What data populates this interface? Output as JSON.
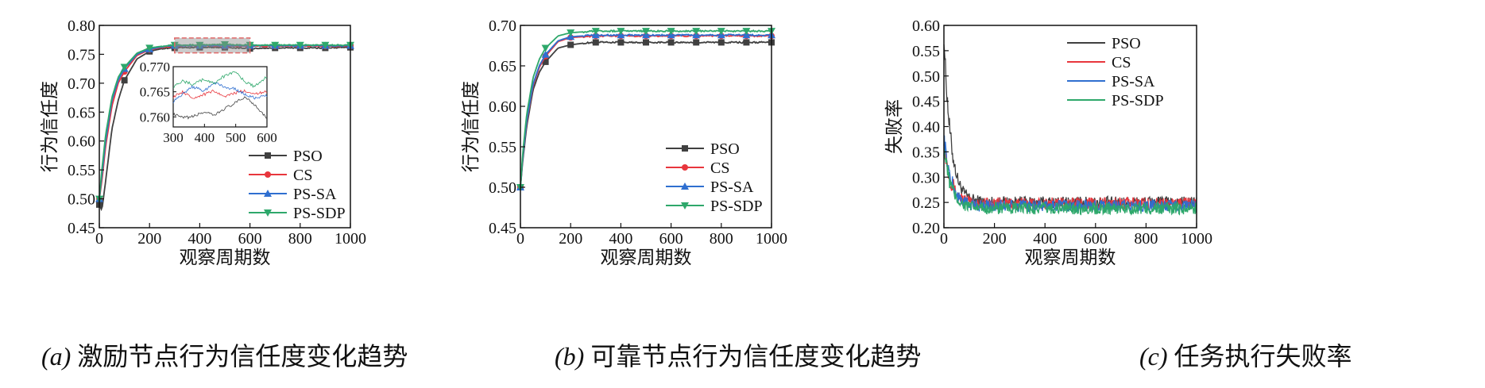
{
  "captions": [
    {
      "tag": "(a)",
      "text": " 激励节点行为信任度变化趋势"
    },
    {
      "tag": "(b)",
      "text": " 可靠节点行为信任度变化趋势"
    },
    {
      "tag": "(c)",
      "text": " 任务执行失败率"
    }
  ],
  "colors": {
    "PSO": "#404040",
    "CS": "#e8363d",
    "PS-SA": "#2f6fd0",
    "PS-SDP": "#2ea86b",
    "inset_box": "#e06a6a"
  },
  "chart_data": [
    {
      "type": "line",
      "title": "",
      "xlabel": "观察周期数",
      "ylabel": "行为信任度",
      "xlim": [
        0,
        1000
      ],
      "ylim": [
        0.45,
        0.8
      ],
      "xticks": [
        0,
        200,
        400,
        600,
        800,
        1000
      ],
      "yticks": [
        0.45,
        0.5,
        0.55,
        0.6,
        0.65,
        0.7,
        0.75,
        0.8
      ],
      "ytick_labels": [
        "0.45",
        "0.50",
        "0.55",
        "0.60",
        "0.65",
        "0.70",
        "0.75",
        "0.80"
      ],
      "legend": "bottom-right",
      "markers_every": 100,
      "series": [
        {
          "name": "PSO",
          "marker": "square",
          "x": [
            0,
            10,
            25,
            50,
            75,
            100,
            150,
            200,
            250,
            300,
            400,
            500,
            600,
            700,
            800,
            900,
            1000
          ],
          "values": [
            0.49,
            0.48,
            0.53,
            0.62,
            0.67,
            0.705,
            0.742,
            0.755,
            0.76,
            0.761,
            0.762,
            0.762,
            0.76,
            0.761,
            0.761,
            0.761,
            0.762
          ]
        },
        {
          "name": "CS",
          "marker": "circle",
          "x": [
            0,
            10,
            25,
            50,
            75,
            100,
            150,
            200,
            250,
            300,
            400,
            500,
            600,
            700,
            800,
            900,
            1000
          ],
          "values": [
            0.5,
            0.53,
            0.59,
            0.66,
            0.7,
            0.72,
            0.748,
            0.758,
            0.762,
            0.764,
            0.765,
            0.764,
            0.764,
            0.764,
            0.764,
            0.764,
            0.764
          ]
        },
        {
          "name": "PS-SA",
          "marker": "triangle-up",
          "x": [
            0,
            10,
            25,
            50,
            75,
            100,
            150,
            200,
            250,
            300,
            400,
            500,
            600,
            700,
            800,
            900,
            1000
          ],
          "values": [
            0.5,
            0.54,
            0.6,
            0.67,
            0.705,
            0.725,
            0.75,
            0.759,
            0.763,
            0.765,
            0.765,
            0.765,
            0.765,
            0.765,
            0.765,
            0.765,
            0.765
          ]
        },
        {
          "name": "PS-SDP",
          "marker": "triangle-down",
          "x": [
            0,
            10,
            25,
            50,
            75,
            100,
            150,
            200,
            250,
            300,
            400,
            500,
            600,
            700,
            800,
            900,
            1000
          ],
          "values": [
            0.5,
            0.55,
            0.61,
            0.675,
            0.71,
            0.728,
            0.752,
            0.761,
            0.764,
            0.766,
            0.766,
            0.767,
            0.766,
            0.766,
            0.766,
            0.766,
            0.766
          ]
        }
      ],
      "inset": {
        "xlim": [
          300,
          600
        ],
        "ylim": [
          0.758,
          0.77
        ],
        "xticks": [
          300,
          400,
          500,
          600
        ],
        "yticks": [
          0.76,
          0.765,
          0.77
        ],
        "ytick_labels": [
          "0.760",
          "0.765",
          "0.770"
        ],
        "series": [
          {
            "name": "PSO",
            "x": [
              300,
              330,
              360,
              400,
              430,
              460,
              500,
              530,
              560,
              600
            ],
            "values": [
              0.7605,
              0.7598,
              0.76,
              0.761,
              0.7602,
              0.7615,
              0.7628,
              0.764,
              0.7625,
              0.7598
            ]
          },
          {
            "name": "CS",
            "x": [
              300,
              330,
              360,
              400,
              430,
              460,
              500,
              530,
              560,
              600
            ],
            "values": [
              0.764,
              0.765,
              0.7638,
              0.7645,
              0.7652,
              0.764,
              0.7648,
              0.7652,
              0.7645,
              0.765
            ]
          },
          {
            "name": "PS-SA",
            "x": [
              300,
              330,
              360,
              400,
              430,
              460,
              500,
              530,
              560,
              600
            ],
            "values": [
              0.763,
              0.7645,
              0.766,
              0.7652,
              0.7668,
              0.766,
              0.7655,
              0.7645,
              0.7638,
              0.7642
            ]
          },
          {
            "name": "PS-SDP",
            "x": [
              300,
              330,
              360,
              400,
              430,
              460,
              500,
              530,
              560,
              600
            ],
            "values": [
              0.766,
              0.7672,
              0.7665,
              0.7675,
              0.7668,
              0.768,
              0.769,
              0.767,
              0.766,
              0.768
            ]
          }
        ]
      }
    },
    {
      "type": "line",
      "title": "",
      "xlabel": "观察周期数",
      "ylabel": "行为信任度",
      "xlim": [
        0,
        1000
      ],
      "ylim": [
        0.45,
        0.7
      ],
      "xticks": [
        0,
        200,
        400,
        600,
        800,
        1000
      ],
      "yticks": [
        0.45,
        0.5,
        0.55,
        0.6,
        0.65,
        0.7
      ],
      "ytick_labels": [
        "0.45",
        "0.50",
        "0.55",
        "0.60",
        "0.65",
        "0.70"
      ],
      "legend": "bottom-right",
      "markers_every": 100,
      "series": [
        {
          "name": "PSO",
          "marker": "square",
          "x": [
            0,
            10,
            25,
            50,
            75,
            100,
            150,
            200,
            250,
            300,
            400,
            500,
            600,
            700,
            800,
            900,
            1000
          ],
          "values": [
            0.5,
            0.535,
            0.575,
            0.62,
            0.642,
            0.655,
            0.672,
            0.676,
            0.678,
            0.679,
            0.679,
            0.679,
            0.679,
            0.679,
            0.679,
            0.679,
            0.679
          ]
        },
        {
          "name": "CS",
          "marker": "circle",
          "x": [
            0,
            10,
            25,
            50,
            75,
            100,
            150,
            200,
            250,
            300,
            400,
            500,
            600,
            700,
            800,
            900,
            1000
          ],
          "values": [
            0.5,
            0.54,
            0.58,
            0.625,
            0.648,
            0.662,
            0.68,
            0.685,
            0.686,
            0.687,
            0.687,
            0.687,
            0.687,
            0.687,
            0.687,
            0.687,
            0.687
          ]
        },
        {
          "name": "PS-SA",
          "marker": "triangle-up",
          "x": [
            0,
            10,
            25,
            50,
            75,
            100,
            150,
            200,
            250,
            300,
            400,
            500,
            600,
            700,
            800,
            900,
            1000
          ],
          "values": [
            0.5,
            0.54,
            0.582,
            0.627,
            0.65,
            0.664,
            0.681,
            0.686,
            0.687,
            0.688,
            0.688,
            0.688,
            0.688,
            0.688,
            0.688,
            0.688,
            0.688
          ]
        },
        {
          "name": "PS-SDP",
          "marker": "triangle-down",
          "x": [
            0,
            10,
            25,
            50,
            75,
            100,
            150,
            200,
            250,
            300,
            400,
            500,
            600,
            700,
            800,
            900,
            1000
          ],
          "values": [
            0.5,
            0.545,
            0.59,
            0.635,
            0.658,
            0.672,
            0.687,
            0.691,
            0.692,
            0.693,
            0.693,
            0.693,
            0.693,
            0.693,
            0.693,
            0.693,
            0.693
          ]
        }
      ]
    },
    {
      "type": "line",
      "title": "",
      "xlabel": "观察周期数",
      "ylabel": "失败率",
      "xlim": [
        0,
        1000
      ],
      "ylim": [
        0.2,
        0.6
      ],
      "xticks": [
        0,
        200,
        400,
        600,
        800,
        1000
      ],
      "yticks": [
        0.2,
        0.25,
        0.3,
        0.35,
        0.4,
        0.45,
        0.5,
        0.55,
        0.6
      ],
      "ytick_labels": [
        "0.20",
        "0.25",
        "0.30",
        "0.35",
        "0.40",
        "0.45",
        "0.50",
        "0.55",
        "0.60"
      ],
      "legend": "top-right",
      "noisy": true,
      "series": [
        {
          "name": "PSO",
          "start": 0.58,
          "steady": 0.25,
          "noise": 0.012
        },
        {
          "name": "CS",
          "start": 0.37,
          "steady": 0.248,
          "noise": 0.012
        },
        {
          "name": "PS-SA",
          "start": 0.38,
          "steady": 0.243,
          "noise": 0.012
        },
        {
          "name": "PS-SDP",
          "start": 0.36,
          "steady": 0.238,
          "noise": 0.012
        }
      ]
    }
  ]
}
